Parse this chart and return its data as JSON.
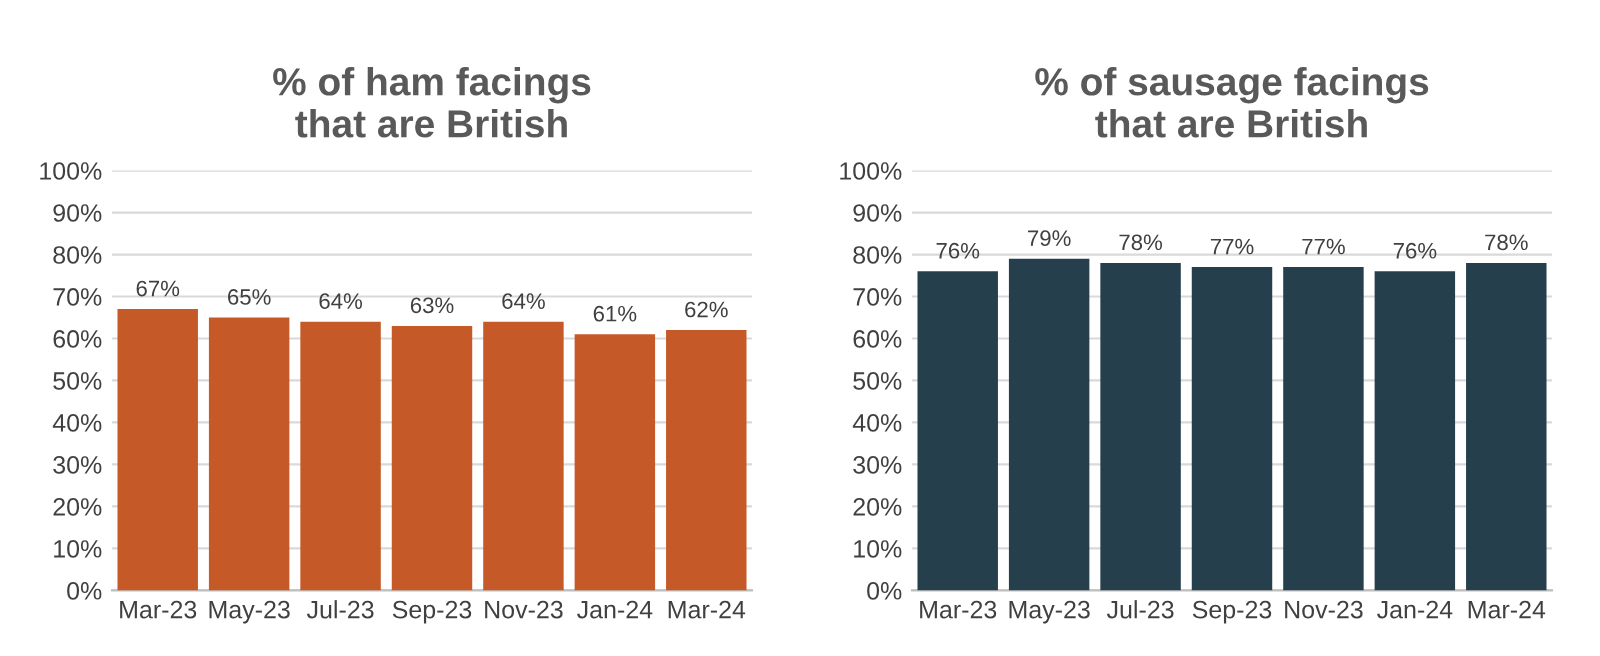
{
  "chart_data": [
    {
      "type": "bar",
      "title": "% of ham facings\nthat are British",
      "categories": [
        "Mar-23",
        "May-23",
        "Jul-23",
        "Sep-23",
        "Nov-23",
        "Jan-24",
        "Mar-24"
      ],
      "values": [
        67,
        65,
        64,
        63,
        64,
        61,
        62
      ],
      "color": "#c55a28",
      "ylim": [
        0,
        100
      ],
      "yticks": [
        {
          "value": 0,
          "label": "0%"
        },
        {
          "value": 10,
          "label": "10%"
        },
        {
          "value": 20,
          "label": "20%"
        },
        {
          "value": 30,
          "label": "30%"
        },
        {
          "value": 40,
          "label": "40%"
        },
        {
          "value": 50,
          "label": "50%"
        },
        {
          "value": 60,
          "label": "60%"
        },
        {
          "value": 70,
          "label": "70%"
        },
        {
          "value": 80,
          "label": "80%"
        },
        {
          "value": 90,
          "label": "90%"
        },
        {
          "value": 100,
          "label": "100%"
        }
      ],
      "grid": "y",
      "value_labels": [
        "67%",
        "65%",
        "64%",
        "63%",
        "64%",
        "61%",
        "62%"
      ]
    },
    {
      "type": "bar",
      "title": "% of sausage facings\nthat are British",
      "categories": [
        "Mar-23",
        "May-23",
        "Jul-23",
        "Sep-23",
        "Nov-23",
        "Jan-24",
        "Mar-24"
      ],
      "values": [
        76,
        79,
        78,
        77,
        77,
        76,
        78
      ],
      "color": "#263f4d",
      "ylim": [
        0,
        100
      ],
      "yticks": [
        {
          "value": 0,
          "label": "0%"
        },
        {
          "value": 10,
          "label": "10%"
        },
        {
          "value": 20,
          "label": "20%"
        },
        {
          "value": 30,
          "label": "30%"
        },
        {
          "value": 40,
          "label": "40%"
        },
        {
          "value": 50,
          "label": "50%"
        },
        {
          "value": 60,
          "label": "60%"
        },
        {
          "value": 70,
          "label": "70%"
        },
        {
          "value": 80,
          "label": "80%"
        },
        {
          "value": 90,
          "label": "90%"
        },
        {
          "value": 100,
          "label": "100%"
        }
      ],
      "grid": "y",
      "value_labels": [
        "76%",
        "79%",
        "78%",
        "77%",
        "77%",
        "76%",
        "78%"
      ]
    }
  ]
}
